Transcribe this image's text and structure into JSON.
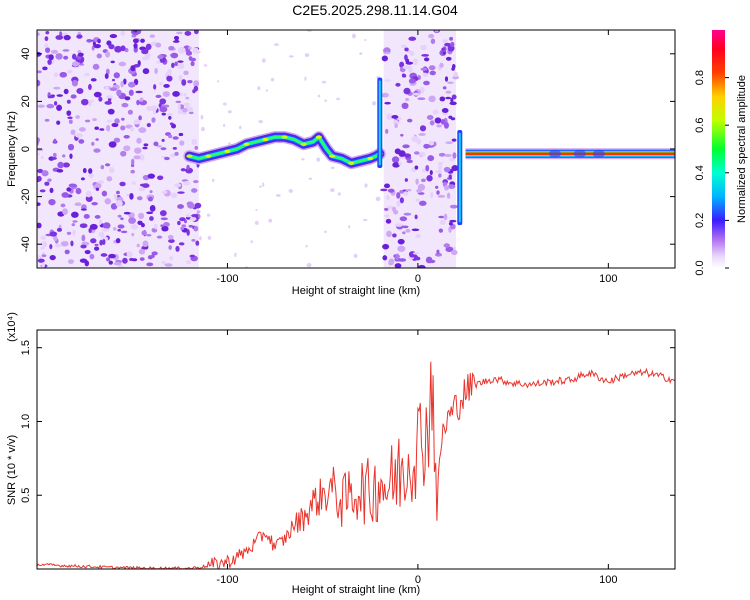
{
  "chart_data": [
    {
      "type": "heatmap",
      "title": "C2E5.2025.298.11.14.G04",
      "xlabel": "Height of straight line (km)",
      "ylabel": "Frequency (Hz)",
      "xlim": [
        -200,
        135
      ],
      "ylim": [
        -50,
        50
      ],
      "xticks": [
        -100,
        0,
        100
      ],
      "xtick_labels": [
        "-100",
        "0",
        "100"
      ],
      "yticks": [
        -40,
        -20,
        0,
        20,
        40
      ],
      "ytick_labels": [
        "-40",
        "-20",
        "0",
        "20",
        "40"
      ],
      "colorbar": {
        "label": "Normalized spectral amplitude",
        "range": [
          0,
          1
        ],
        "ticks": [
          0.0,
          0.2,
          0.4,
          0.6,
          0.8
        ],
        "tick_labels": [
          "0.0",
          "0.2",
          "0.4",
          "0.6",
          "0.8"
        ],
        "colors": [
          "#ffffff",
          "#d9b8f2",
          "#8a2be2",
          "#2020ff",
          "#00ffff",
          "#00ff40",
          "#b0ff00",
          "#ffff00",
          "#ff8000",
          "#ff0000",
          "#ff0080"
        ]
      },
      "noise_regions": [
        [
          -200,
          -115
        ],
        [
          -18,
          20
        ]
      ],
      "signal_track": {
        "x": [
          -120,
          -115,
          -110,
          -105,
          -100,
          -95,
          -90,
          -85,
          -80,
          -75,
          -70,
          -65,
          -60,
          -55,
          -52,
          -48,
          -45,
          -40,
          -35,
          -30,
          -25,
          -22,
          -20
        ],
        "y": [
          -3,
          -4,
          -3,
          -2,
          -1,
          0,
          2,
          3,
          4,
          5,
          5,
          4,
          2,
          3,
          5,
          0,
          -3,
          -4,
          -6,
          -5,
          -4,
          -3,
          -2
        ]
      },
      "steady_line": {
        "x_start": 25,
        "x_end": 135,
        "y": -2
      }
    },
    {
      "type": "line",
      "title": "",
      "xlabel": "Height of straight line (km)",
      "ylabel": "SNR (10 * v/v)",
      "ymultiplier": "(x10⁴)",
      "xlim": [
        -200,
        135
      ],
      "ylim": [
        0,
        1.62
      ],
      "xticks": [
        -100,
        0,
        100
      ],
      "xtick_labels": [
        "-100",
        "0",
        "100"
      ],
      "yticks": [
        0.5,
        1.0,
        1.5
      ],
      "ytick_labels": [
        "0.5",
        "1.0",
        "1.5"
      ],
      "color": "#e8342c",
      "series": [
        {
          "x": [
            -200,
            -180,
            -160,
            -140,
            -120,
            -110,
            -100,
            -95,
            -90,
            -85,
            -80,
            -75,
            -70,
            -65,
            -60,
            -55,
            -50,
            -45,
            -40,
            -35,
            -30,
            -25,
            -20,
            -15,
            -10,
            -5,
            0,
            5,
            8,
            10,
            12,
            15,
            20,
            25,
            30,
            40,
            50,
            60,
            70,
            80,
            90,
            100,
            110,
            120,
            135
          ],
          "y": [
            0.03,
            0.02,
            0.01,
            0.005,
            0.005,
            0.02,
            0.05,
            0.08,
            0.12,
            0.18,
            0.25,
            0.15,
            0.2,
            0.3,
            0.35,
            0.45,
            0.5,
            0.55,
            0.45,
            0.5,
            0.55,
            0.5,
            0.6,
            0.55,
            0.65,
            0.75,
            0.85,
            0.95,
            1.3,
            0.35,
            0.85,
            1.0,
            1.1,
            1.2,
            1.25,
            1.29,
            1.26,
            1.25,
            1.27,
            1.28,
            1.33,
            1.27,
            1.32,
            1.33,
            1.28
          ]
        }
      ]
    }
  ]
}
